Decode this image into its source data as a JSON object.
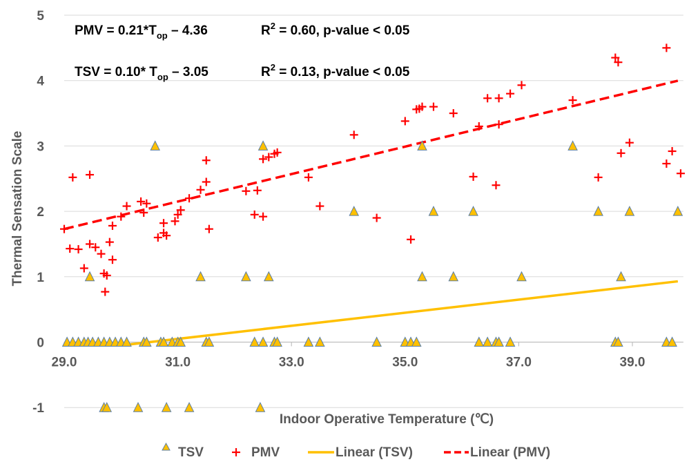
{
  "chart_data": {
    "type": "scatter",
    "xlabel": "Indoor Operative Temperature (℃)",
    "ylabel": "Thermal Sensation Scale",
    "xlim": [
      29.0,
      39.8
    ],
    "ylim": [
      -1,
      5
    ],
    "xticks": [
      "29.0",
      "31.0",
      "33.0",
      "35.0",
      "37.0",
      "39.0"
    ],
    "yticks": [
      "-1",
      "0",
      "1",
      "2",
      "3",
      "4",
      "5"
    ],
    "grid": "horizontal",
    "legend_position": "bottom",
    "annotations": {
      "pmv_equation": {
        "lhs": "PMV = 0.21*T",
        "sub": "op",
        "rhs": " – 4.36"
      },
      "pmv_fit": {
        "pre": "R",
        "sup": "2",
        "post": " = 0.60, p-value < 0.05"
      },
      "tsv_equation": {
        "lhs": "TSV = 0.10* T",
        "sub": "op",
        "rhs": " – 3.05"
      },
      "tsv_fit": {
        "pre": "R",
        "sup": "2",
        "post": " = 0.13, p-value < 0.05"
      }
    },
    "series": [
      {
        "name": "TSV",
        "marker": "triangle",
        "color": "#FFC000",
        "edge_color": "#5B7FA6",
        "points": [
          [
            29.05,
            0
          ],
          [
            29.15,
            0
          ],
          [
            29.25,
            0
          ],
          [
            29.35,
            0
          ],
          [
            29.42,
            0
          ],
          [
            29.5,
            0
          ],
          [
            29.6,
            0
          ],
          [
            29.7,
            0
          ],
          [
            29.8,
            0
          ],
          [
            29.9,
            0
          ],
          [
            30.0,
            0
          ],
          [
            30.1,
            0
          ],
          [
            30.4,
            0
          ],
          [
            30.45,
            0
          ],
          [
            30.7,
            0
          ],
          [
            30.75,
            0
          ],
          [
            30.9,
            0
          ],
          [
            31.0,
            0
          ],
          [
            31.05,
            0
          ],
          [
            31.5,
            0
          ],
          [
            31.55,
            0
          ],
          [
            32.35,
            0
          ],
          [
            32.5,
            0
          ],
          [
            32.7,
            0
          ],
          [
            32.75,
            0
          ],
          [
            33.3,
            0
          ],
          [
            33.5,
            0
          ],
          [
            34.5,
            0
          ],
          [
            35.0,
            0
          ],
          [
            35.1,
            0
          ],
          [
            35.2,
            0
          ],
          [
            36.3,
            0
          ],
          [
            36.45,
            0
          ],
          [
            36.6,
            0
          ],
          [
            36.65,
            0
          ],
          [
            36.85,
            0
          ],
          [
            38.7,
            0
          ],
          [
            38.75,
            0
          ],
          [
            39.6,
            0
          ],
          [
            39.7,
            0
          ],
          [
            29.45,
            1
          ],
          [
            31.4,
            1
          ],
          [
            32.2,
            1
          ],
          [
            32.6,
            1
          ],
          [
            35.3,
            1
          ],
          [
            35.85,
            1
          ],
          [
            37.05,
            1
          ],
          [
            38.8,
            1
          ],
          [
            34.1,
            2
          ],
          [
            35.5,
            2
          ],
          [
            36.2,
            2
          ],
          [
            38.4,
            2
          ],
          [
            38.95,
            2
          ],
          [
            39.8,
            2
          ],
          [
            30.6,
            3
          ],
          [
            32.5,
            3
          ],
          [
            35.3,
            3
          ],
          [
            37.95,
            3
          ],
          [
            29.7,
            -1
          ],
          [
            29.75,
            -1
          ],
          [
            30.3,
            -1
          ],
          [
            30.8,
            -1
          ],
          [
            31.2,
            -1
          ],
          [
            32.45,
            -1
          ]
        ]
      },
      {
        "name": "PMV",
        "marker": "plus",
        "color": "#FF0000",
        "points": [
          [
            29.0,
            1.73
          ],
          [
            29.1,
            1.43
          ],
          [
            29.15,
            2.52
          ],
          [
            29.25,
            1.42
          ],
          [
            29.35,
            1.13
          ],
          [
            29.45,
            1.5
          ],
          [
            29.45,
            2.56
          ],
          [
            29.55,
            1.45
          ],
          [
            29.65,
            1.35
          ],
          [
            29.7,
            1.05
          ],
          [
            29.72,
            0.77
          ],
          [
            29.75,
            1.02
          ],
          [
            29.8,
            1.53
          ],
          [
            29.85,
            1.78
          ],
          [
            29.85,
            1.26
          ],
          [
            30.0,
            1.92
          ],
          [
            30.1,
            2.08
          ],
          [
            30.35,
            2.15
          ],
          [
            30.4,
            1.98
          ],
          [
            30.45,
            2.12
          ],
          [
            30.65,
            1.6
          ],
          [
            30.75,
            1.82
          ],
          [
            30.75,
            1.67
          ],
          [
            30.8,
            1.63
          ],
          [
            30.95,
            1.85
          ],
          [
            31.0,
            1.95
          ],
          [
            31.05,
            2.02
          ],
          [
            31.2,
            2.2
          ],
          [
            31.4,
            2.33
          ],
          [
            31.5,
            2.45
          ],
          [
            31.5,
            2.78
          ],
          [
            31.55,
            1.73
          ],
          [
            32.2,
            2.31
          ],
          [
            32.35,
            1.95
          ],
          [
            32.4,
            2.32
          ],
          [
            32.5,
            1.92
          ],
          [
            32.5,
            2.8
          ],
          [
            32.6,
            2.83
          ],
          [
            32.7,
            2.88
          ],
          [
            32.75,
            2.9
          ],
          [
            33.3,
            2.52
          ],
          [
            33.5,
            2.08
          ],
          [
            34.1,
            3.17
          ],
          [
            34.5,
            1.9
          ],
          [
            35.0,
            3.38
          ],
          [
            35.1,
            1.57
          ],
          [
            35.2,
            3.56
          ],
          [
            35.25,
            3.57
          ],
          [
            35.3,
            3.6
          ],
          [
            35.5,
            3.6
          ],
          [
            35.85,
            3.5
          ],
          [
            36.2,
            2.53
          ],
          [
            36.3,
            3.3
          ],
          [
            36.45,
            3.73
          ],
          [
            36.6,
            2.4
          ],
          [
            36.65,
            3.33
          ],
          [
            36.65,
            3.73
          ],
          [
            36.85,
            3.8
          ],
          [
            37.05,
            3.93
          ],
          [
            37.95,
            3.7
          ],
          [
            38.4,
            2.52
          ],
          [
            38.7,
            4.35
          ],
          [
            38.75,
            4.28
          ],
          [
            38.8,
            2.89
          ],
          [
            38.95,
            3.05
          ],
          [
            39.6,
            4.5
          ],
          [
            39.6,
            2.73
          ],
          [
            39.7,
            2.92
          ],
          [
            39.85,
            2.58
          ]
        ]
      },
      {
        "name": "Linear (TSV)",
        "type": "line",
        "color": "#FFC000",
        "slope": 0.1,
        "intercept": -3.05,
        "x_range": [
          30.0,
          39.8
        ]
      },
      {
        "name": "Linear (PMV)",
        "type": "line",
        "dash": true,
        "color": "#FF0000",
        "slope": 0.21,
        "intercept": -4.36,
        "x_range": [
          29.0,
          39.8
        ]
      }
    ]
  }
}
